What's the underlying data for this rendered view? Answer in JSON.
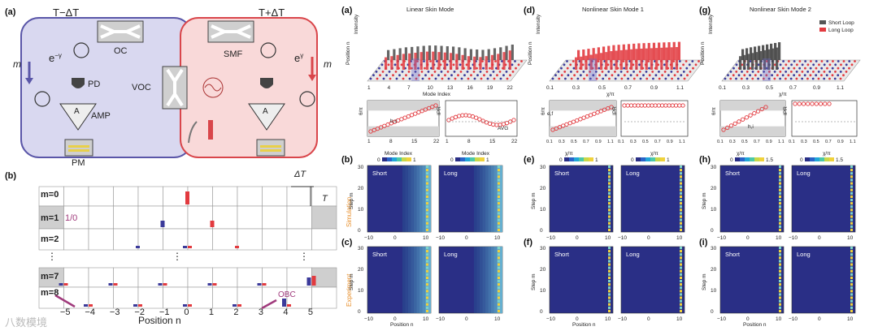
{
  "left": {
    "panel_a": "(a)",
    "panel_b": "(b)",
    "cold_label": "T−ΔT",
    "hot_label": "T+ΔT",
    "m_left": "m",
    "m_right": "m",
    "loss": "e",
    "gain": "e",
    "loss_exp": "−γ",
    "gain_exp": "γ",
    "oc": "OC",
    "smf": "SMF",
    "pd": "PD",
    "amp": "AMP",
    "voc": "VOC",
    "pm": "PM",
    "delta_t": "ΔT",
    "t": "T",
    "m0": "m=0",
    "m1": "m=1",
    "m2": "m=2",
    "m7": "m=7",
    "m8": "m=8",
    "ratio": "1/0",
    "obc": "OBC",
    "dots": "⋮",
    "position_label": "Position n",
    "positions": [
      "−5",
      "−4",
      "−3",
      "−2",
      "−1",
      "0",
      "1",
      "2",
      "3",
      "4",
      "5"
    ],
    "watermark": "八数模境"
  },
  "right": {
    "panel_a": "(a)",
    "panel_d": "(d)",
    "panel_g": "(g)",
    "panel_b": "(b)",
    "panel_c": "(c)",
    "panel_e": "(e)",
    "panel_f": "(f)",
    "panel_h": "(h)",
    "panel_i": "(i)",
    "title_a": "Linear Skin Mode",
    "title_d": "Nonlinear Skin Mode 1",
    "title_g": "Nonlinear Skin Mode 2",
    "legend_short": "Short Loop",
    "legend_long": "Long Loop",
    "intensity": "Intensity",
    "position_n": "Position n",
    "mode_index": "Mode Index",
    "chi_pi": "χ/π",
    "theta": "θ/π",
    "ipr": "IPR",
    "avg": "AVG",
    "bc": "b,c",
    "ef": "e,f",
    "hi": "h,i",
    "simulation": "Simulation",
    "experiment": "Experiment",
    "short": "Short",
    "long": "Long",
    "step_m": "Step m",
    "mode_ticks": [
      "1",
      "4",
      "7",
      "10",
      "13",
      "16",
      "19",
      "22"
    ],
    "chi_ticks": [
      "0.1",
      "0.3",
      "0.5",
      "0.7",
      "0.9",
      "1.1"
    ],
    "mi_ticks_small": [
      "1",
      "8",
      "15",
      "22"
    ],
    "step_ticks": [
      "0",
      "10",
      "20",
      "30"
    ],
    "pos_ticks": [
      "−10",
      "0",
      "10"
    ],
    "cbar_0": "0",
    "cbar_1": "1",
    "cbar_15": "1.5"
  },
  "colors": {
    "cold_bg": "#d9d8f0",
    "cold_border": "#5a56a8",
    "hot_bg": "#f9d9d9",
    "hot_border": "#d9464b",
    "red": "#e23a3f",
    "blue": "#3b3a9a",
    "orange": "#e8912f",
    "heat_bg": "#2a2f86"
  },
  "chart_data": [
    {
      "type": "bar",
      "title": "Linear Skin Mode",
      "xlabel": "Mode Index",
      "ylabel": "Intensity",
      "categories": [
        "1",
        "2",
        "3",
        "4",
        "5",
        "6",
        "7",
        "8",
        "9",
        "10",
        "11",
        "12",
        "13",
        "14",
        "15",
        "16",
        "17",
        "18",
        "19",
        "20",
        "21",
        "22"
      ],
      "series": [
        {
          "name": "Short Loop",
          "values": [
            0.55,
            0.6,
            0.65,
            0.7,
            0.72,
            0.75,
            0.78,
            0.8,
            0.8,
            0.78,
            0.76,
            0.74,
            0.7,
            0.65,
            0.6,
            0.58,
            0.56,
            0.6,
            0.65,
            0.7,
            0.78,
            0.85
          ]
        },
        {
          "name": "Long Loop",
          "values": [
            0.5,
            0.55,
            0.6,
            0.62,
            0.65,
            0.68,
            0.7,
            0.72,
            0.72,
            0.7,
            0.68,
            0.66,
            0.64,
            0.6,
            0.56,
            0.55,
            0.55,
            0.6,
            0.66,
            0.72,
            0.78,
            0.82
          ]
        }
      ]
    },
    {
      "type": "bar",
      "title": "Nonlinear Skin Mode 1",
      "xlabel": "χ/π",
      "ylabel": "Intensity",
      "x": [
        0.1,
        0.15,
        0.2,
        0.25,
        0.3,
        0.35,
        0.4,
        0.45,
        0.5,
        0.55,
        0.6,
        0.65,
        0.7,
        0.75,
        0.8,
        0.85,
        0.9,
        0.95,
        1.0,
        1.05,
        1.1
      ],
      "series": [
        {
          "name": "Long Loop",
          "values": [
            0.55,
            0.58,
            0.62,
            0.66,
            0.7,
            0.74,
            0.78,
            0.82,
            0.84,
            0.86,
            0.88,
            0.9,
            0.92,
            0.93,
            0.94,
            0.95,
            0.96,
            0.97,
            0.98,
            0.99,
            1.0
          ]
        }
      ]
    },
    {
      "type": "bar",
      "title": "Nonlinear Skin Mode 2",
      "xlabel": "χ/π",
      "ylabel": "Intensity",
      "x": [
        0.1,
        0.15,
        0.2,
        0.25,
        0.3,
        0.35,
        0.4,
        0.45,
        0.5,
        0.55
      ],
      "series": [
        {
          "name": "Short Loop",
          "values": [
            0.6,
            0.65,
            0.7,
            0.74,
            0.78,
            0.82,
            0.86,
            0.9,
            0.94,
            0.98
          ]
        }
      ]
    }
  ]
}
